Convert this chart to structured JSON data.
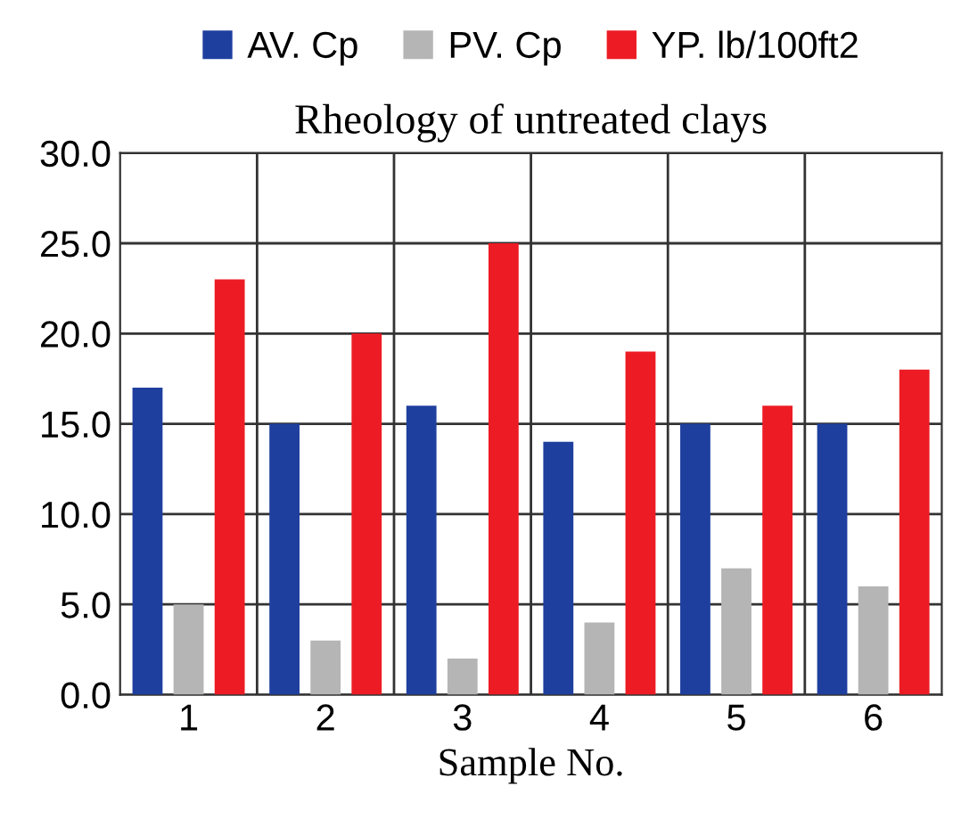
{
  "chart_data": {
    "type": "bar",
    "title": "Rheology of untreated clays",
    "xlabel": "Sample No.",
    "categories": [
      "1",
      "2",
      "3",
      "4",
      "5",
      "6"
    ],
    "series": [
      {
        "name": "AV. Cp",
        "color": "#1f3f9f",
        "values": [
          17,
          15,
          16,
          14,
          15,
          15
        ]
      },
      {
        "name": "PV. Cp",
        "color": "#b5b5b5",
        "values": [
          5,
          3,
          2,
          4,
          7,
          6
        ]
      },
      {
        "name": "YP. lb/100ft2",
        "color": "#ed1c24",
        "values": [
          23,
          20,
          25,
          19,
          16,
          18
        ]
      }
    ],
    "ylim": [
      0,
      30
    ],
    "yticks": [
      {
        "value": 0,
        "label": "0.0"
      },
      {
        "value": 5,
        "label": "5.0"
      },
      {
        "value": 10,
        "label": "10.0"
      },
      {
        "value": 15,
        "label": "15.0"
      },
      {
        "value": 20,
        "label": "20.0"
      },
      {
        "value": 25,
        "label": "25.0"
      },
      {
        "value": 30,
        "label": "30.0"
      }
    ],
    "grid": true,
    "legend": "top"
  }
}
